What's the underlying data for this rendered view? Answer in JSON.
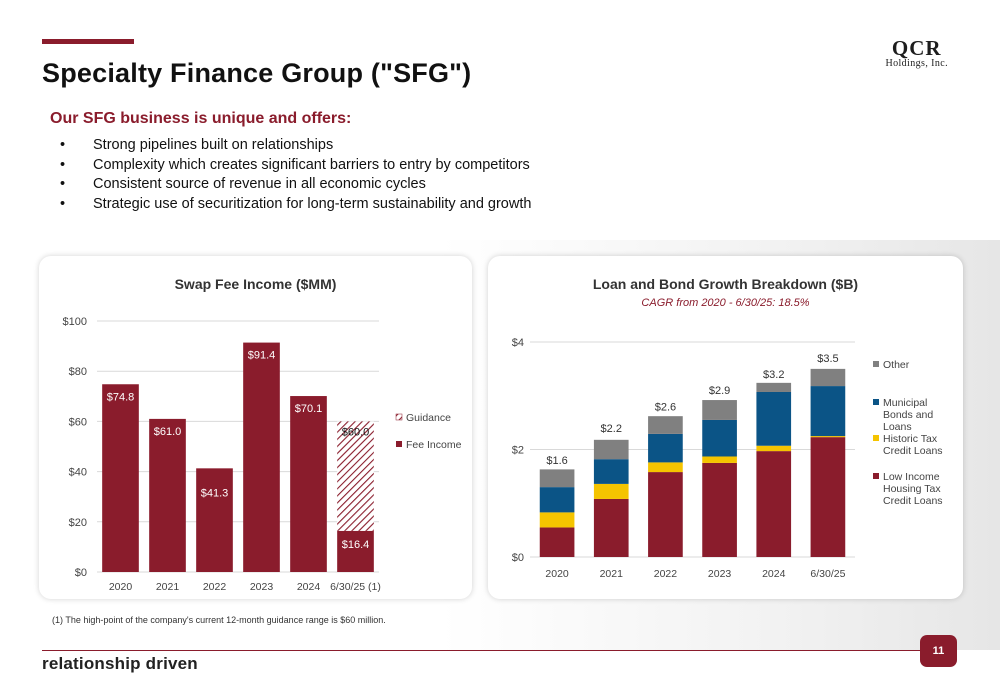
{
  "slide": {
    "title": "Specialty Finance Group (\"SFG\")",
    "logo_main": "QCR",
    "logo_sub": "Holdings, Inc.",
    "subtitle": "Our SFG business is unique and offers:",
    "bullets": [
      "Strong pipelines built on relationships",
      "Complexity which creates significant barriers to entry by competitors",
      "Consistent source of revenue in all economic cycles",
      "Strategic use of securitization for long-term sustainability and growth"
    ],
    "footnote": "(1) The high-point of the company's current 12-month guidance range is $60 million.",
    "footer_brand": "relationship driven",
    "page_number": "11",
    "colors": {
      "accent": "#8a1c2c"
    }
  },
  "chart_data": [
    {
      "type": "bar",
      "title": "Swap Fee Income ($MM)",
      "categories": [
        "2020",
        "2021",
        "2022",
        "2023",
        "2024",
        "6/30/25 (1)"
      ],
      "series": [
        {
          "name": "Fee Income",
          "values": [
            74.8,
            61.0,
            41.3,
            91.4,
            70.1,
            16.4
          ],
          "labels": [
            "$74.8",
            "$61.0",
            "$41.3",
            "$91.4",
            "$70.1",
            "$16.4"
          ],
          "color": "#8a1c2c"
        },
        {
          "name": "Guidance",
          "values": [
            0,
            0,
            0,
            0,
            0,
            43.6
          ],
          "total_label": "$60.0",
          "pattern": "hatch"
        }
      ],
      "yticks": [
        "$0",
        "$20",
        "$40",
        "$60",
        "$80",
        "$100"
      ],
      "ylim": [
        0,
        100
      ],
      "legend": [
        "Guidance",
        "Fee Income"
      ],
      "legend_position": "right",
      "grid": true
    },
    {
      "type": "bar",
      "stacked": true,
      "title": "Loan and Bond Growth Breakdown ($B)",
      "subtitle": "CAGR from 2020 - 6/30/25: 18.5%",
      "categories": [
        "2020",
        "2021",
        "2022",
        "2023",
        "2024",
        "6/30/25"
      ],
      "series": [
        {
          "name": "Low Income Housing Tax Credit Loans",
          "values": [
            0.55,
            1.08,
            1.58,
            1.75,
            1.97,
            2.23
          ],
          "color": "#8a1c2c"
        },
        {
          "name": "Historic Tax Credit Loans",
          "values": [
            0.28,
            0.28,
            0.18,
            0.12,
            0.1,
            0.02
          ],
          "color": "#f5c400"
        },
        {
          "name": "Municipal Bonds and Loans",
          "values": [
            0.47,
            0.46,
            0.53,
            0.68,
            1.0,
            0.93
          ],
          "color": "#0b5486"
        },
        {
          "name": "Other",
          "values": [
            0.33,
            0.36,
            0.33,
            0.37,
            0.17,
            0.32
          ],
          "color": "#808080"
        }
      ],
      "total_labels": [
        "$1.6",
        "$2.2",
        "$2.6",
        "$2.9",
        "$3.2",
        "$3.5"
      ],
      "totals": [
        1.6,
        2.2,
        2.6,
        2.9,
        3.2,
        3.5
      ],
      "yticks": [
        "$0",
        "$2",
        "$4"
      ],
      "ylim": [
        0,
        4
      ],
      "legend_position": "right",
      "grid": true
    }
  ]
}
